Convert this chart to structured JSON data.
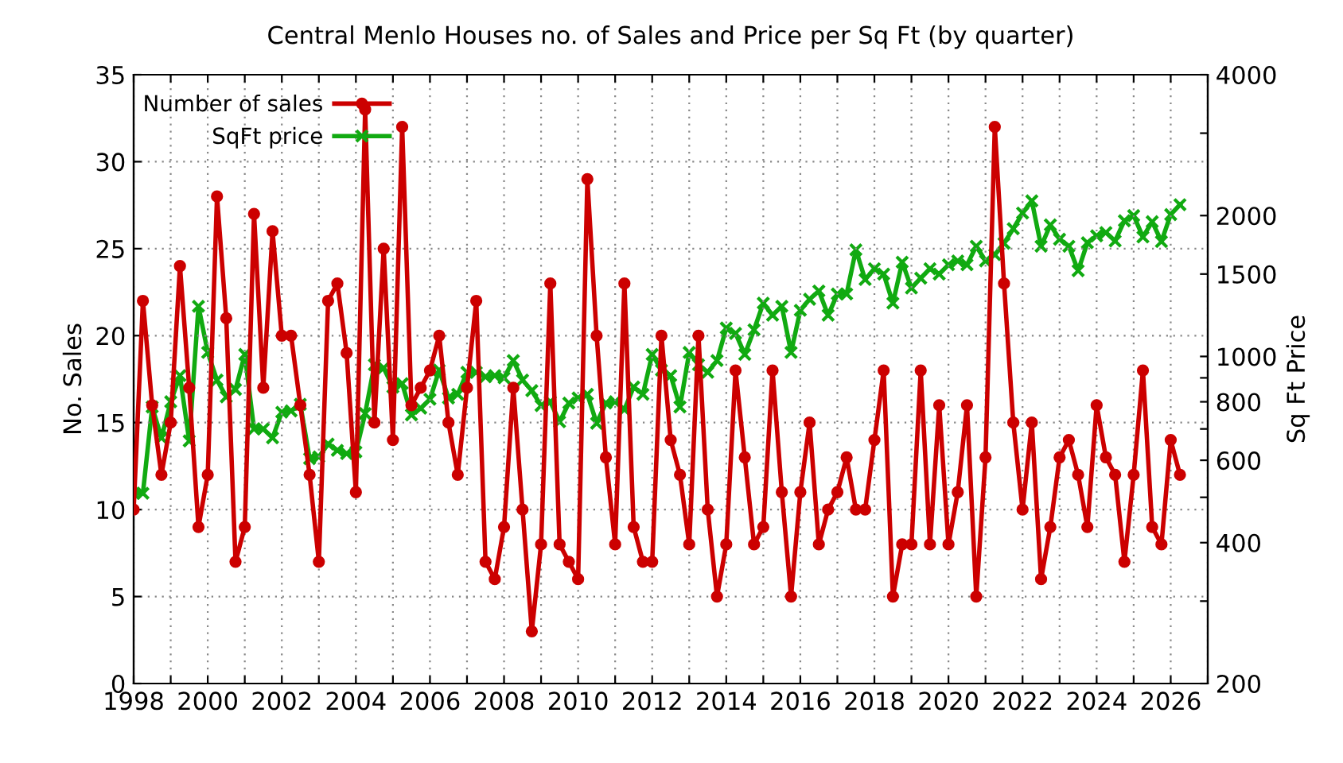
{
  "chart_data": {
    "type": "line",
    "title": "Central Menlo Houses no. of Sales and Price per Sq Ft (by quarter)",
    "ylabel": "No. Sales",
    "y2label": "Sq Ft Price",
    "x": [
      1998.0,
      1998.25,
      1998.5,
      1998.75,
      1999.0,
      1999.25,
      1999.5,
      1999.75,
      2000.0,
      2000.25,
      2000.5,
      2000.75,
      2001.0,
      2001.25,
      2001.5,
      2001.75,
      2002.0,
      2002.25,
      2002.5,
      2002.75,
      2003.0,
      2003.25,
      2003.5,
      2003.75,
      2004.0,
      2004.25,
      2004.5,
      2004.75,
      2005.0,
      2005.25,
      2005.5,
      2005.75,
      2006.0,
      2006.25,
      2006.5,
      2006.75,
      2007.0,
      2007.25,
      2007.5,
      2007.75,
      2008.0,
      2008.25,
      2008.5,
      2008.75,
      2009.0,
      2009.25,
      2009.5,
      2009.75,
      2010.0,
      2010.25,
      2010.5,
      2010.75,
      2011.0,
      2011.25,
      2011.5,
      2011.75,
      2012.0,
      2012.25,
      2012.5,
      2012.75,
      2013.0,
      2013.25,
      2013.5,
      2013.75,
      2014.0,
      2014.25,
      2014.5,
      2014.75,
      2015.0,
      2015.25,
      2015.5,
      2015.75,
      2016.0,
      2016.25,
      2016.5,
      2016.75,
      2017.0,
      2017.25,
      2017.5,
      2017.75,
      2018.0,
      2018.25,
      2018.5,
      2018.75,
      2019.0,
      2019.25,
      2019.5,
      2019.75,
      2020.0,
      2020.25,
      2020.5,
      2020.75,
      2021.0,
      2021.25,
      2021.5,
      2021.75,
      2022.0,
      2022.25,
      2022.5,
      2022.75,
      2023.0,
      2023.25,
      2023.5,
      2023.75,
      2024.0,
      2024.25,
      2024.5,
      2024.75,
      2025.0,
      2025.25,
      2025.5,
      2025.75,
      2026.0,
      2026.25
    ],
    "series": [
      {
        "name": "Number of sales",
        "color": "#cc0000",
        "marker": "circle",
        "values": [
          10,
          22,
          16,
          12,
          15,
          24,
          17,
          9,
          12,
          28,
          21,
          7,
          9,
          27,
          17,
          26,
          20,
          20,
          16,
          12,
          7,
          22,
          23,
          19,
          11,
          33,
          15,
          25,
          14,
          32,
          16,
          17,
          18,
          20,
          15,
          12,
          17,
          22,
          7,
          6,
          9,
          17,
          10,
          3,
          8,
          23,
          8,
          7,
          6,
          29,
          20,
          13,
          8,
          23,
          9,
          7,
          7,
          20,
          14,
          12,
          8,
          20,
          10,
          5,
          8,
          18,
          13,
          8,
          9,
          18,
          11,
          5,
          11,
          15,
          8,
          10,
          11,
          13,
          10,
          10,
          14,
          18,
          5,
          8,
          8,
          18,
          8,
          16,
          8,
          11,
          16,
          5,
          13,
          32,
          23,
          15,
          10,
          15,
          6,
          9,
          13,
          14,
          12,
          9,
          16,
          13,
          12,
          7,
          12,
          18,
          9,
          8,
          14,
          12
        ]
      },
      {
        "name": "SqFt price",
        "color": "#11aa11",
        "marker": "cross",
        "axis": "y2",
        "values": [
          510,
          510,
          780,
          670,
          800,
          910,
          660,
          1280,
          1020,
          890,
          820,
          850,
          1010,
          700,
          700,
          670,
          760,
          765,
          790,
          605,
          610,
          650,
          630,
          620,
          625,
          755,
          960,
          945,
          860,
          875,
          750,
          775,
          810,
          935,
          815,
          830,
          925,
          925,
          905,
          910,
          900,
          980,
          890,
          845,
          785,
          800,
          725,
          795,
          815,
          830,
          720,
          795,
          800,
          770,
          860,
          830,
          1010,
          935,
          910,
          780,
          1020,
          960,
          925,
          980,
          1150,
          1120,
          1010,
          1140,
          1300,
          1225,
          1280,
          1020,
          1255,
          1325,
          1380,
          1225,
          1360,
          1360,
          1690,
          1460,
          1540,
          1500,
          1300,
          1590,
          1400,
          1470,
          1540,
          1500,
          1570,
          1600,
          1570,
          1720,
          1600,
          1650,
          1745,
          1875,
          2025,
          2150,
          1720,
          1910,
          1780,
          1720,
          1525,
          1750,
          1810,
          1840,
          1765,
          1950,
          2000,
          1800,
          1940,
          1760,
          2010,
          2110
        ]
      }
    ],
    "xlim": [
      1998,
      2027
    ],
    "xticks": [
      1998,
      {
        "value": 1999,
        "label": null
      },
      2000,
      {
        "value": 2001,
        "label": null
      },
      2002,
      {
        "value": 2003,
        "label": null
      },
      2004,
      {
        "value": 2005,
        "label": null
      },
      2006,
      {
        "value": 2007,
        "label": null
      },
      2008,
      {
        "value": 2009,
        "label": null
      },
      2010,
      {
        "value": 2011,
        "label": null
      },
      2012,
      {
        "value": 2013,
        "label": null
      },
      2014,
      {
        "value": 2015,
        "label": null
      },
      2016,
      {
        "value": 2017,
        "label": null
      },
      2018,
      {
        "value": 2019,
        "label": null
      },
      2020,
      {
        "value": 2021,
        "label": null
      },
      2022,
      {
        "value": 2023,
        "label": null
      },
      2024,
      {
        "value": 2025,
        "label": null
      },
      2026,
      {
        "value": 2027,
        "label": null
      }
    ],
    "ylim": [
      0,
      35
    ],
    "yticks": [
      0,
      5,
      10,
      15,
      20,
      25,
      30,
      35
    ],
    "log": "y2",
    "y2lim": [
      200,
      4000
    ],
    "y2ticks": [
      200,
      {
        "value": 300,
        "label": null
      },
      400,
      {
        "value": 500,
        "label": null
      },
      600,
      {
        "value": 700,
        "label": null
      },
      800,
      {
        "value": 900,
        "label": null
      },
      1000,
      1500,
      2000,
      {
        "value": 3000,
        "label": null
      },
      4000
    ],
    "grid": true,
    "legend": "top left",
    "line_style": "solid"
  }
}
